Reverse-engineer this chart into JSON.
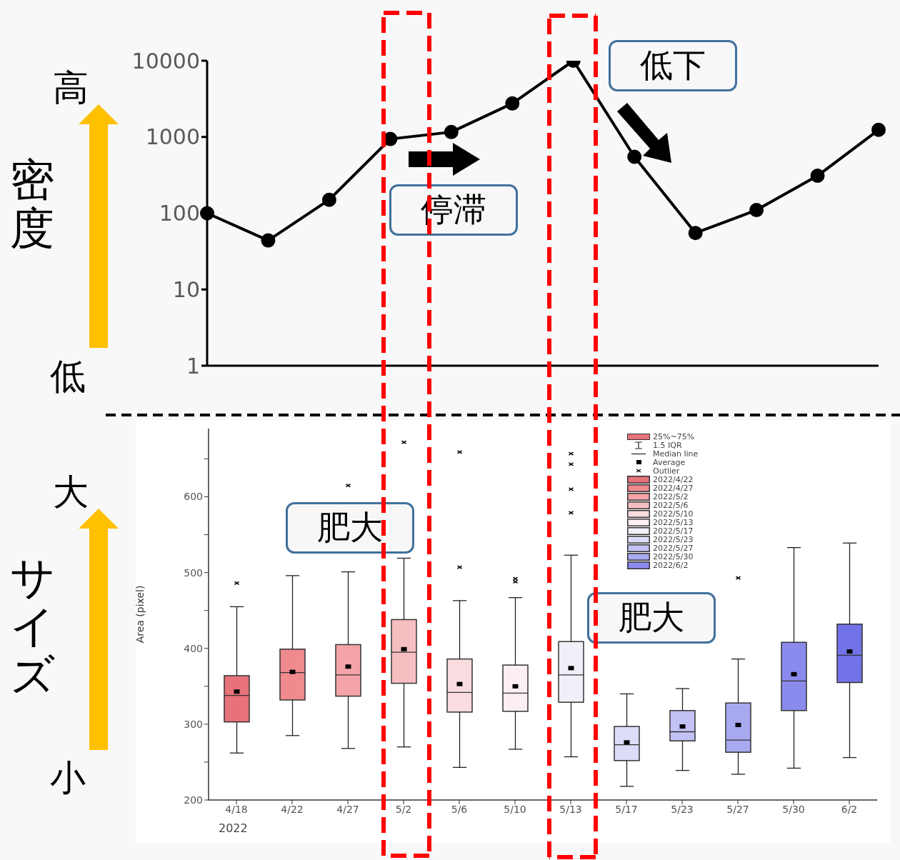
{
  "chart_data": [
    {
      "type": "line",
      "ylabel": "密度",
      "annotations": [
        "高",
        "低",
        "停滞",
        "低下"
      ],
      "categories": [
        null,
        null,
        null,
        null,
        null,
        null,
        null,
        null,
        null,
        null,
        null,
        null
      ],
      "series": [
        {
          "color": "#000000",
          "values": [
            100,
            44,
            150,
            940,
            1160,
            2750,
            10000,
            550,
            55,
            110,
            310,
            1240
          ]
        }
      ],
      "log": true,
      "ylim": [
        1,
        10000
      ],
      "yticks": [
        1,
        10,
        100,
        1000,
        10000
      ],
      "marker": "circle",
      "line_style": "solid"
    },
    {
      "type": "box",
      "ylabel": "Area (pixel)",
      "annotations": [
        "サイズ",
        "大",
        "小",
        "肥大",
        "肥大",
        "2022",
        "25%~75%",
        "1.5 IQR",
        "Median line",
        "Average",
        "Outlier",
        "2022/4/22",
        "2022/4/27",
        "2022/5/2",
        "2022/5/6",
        "2022/5/10",
        "2022/5/13",
        "2022/5/17",
        "2022/5/23",
        "2022/5/27",
        "2022/5/30",
        "2022/6/2"
      ],
      "categories": [
        "4/18",
        "4/22",
        "4/27",
        "5/2",
        "5/6",
        "5/10",
        "5/13",
        "5/17",
        "5/23",
        "5/27",
        "5/30",
        "6/2"
      ],
      "ylim": [
        200,
        690
      ],
      "yticks": [
        200,
        {
          "value": 250,
          "label": null
        },
        300,
        {
          "value": 350,
          "label": null
        },
        400,
        {
          "value": 450,
          "label": null
        },
        500,
        {
          "value": 550,
          "label": null
        },
        600,
        {
          "value": 650,
          "label": null
        }
      ],
      "series": [
        {
          "color": "#e8727a",
          "boxes": [
            {
              "low": 262,
              "q1": 303,
              "median": 338,
              "q3": 364,
              "high": 455,
              "mean": 343,
              "outliers": [
                486
              ]
            },
            null,
            null,
            null,
            null,
            null,
            null,
            null,
            null,
            null,
            null,
            null
          ]
        },
        {
          "color": "#ef8a8f",
          "boxes": [
            null,
            {
              "low": 285,
              "q1": 332,
              "median": 368,
              "q3": 399,
              "high": 496,
              "mean": 369
            },
            null,
            null,
            null,
            null,
            null,
            null,
            null,
            null,
            null,
            null
          ]
        },
        {
          "color": "#f4a4a8",
          "boxes": [
            null,
            null,
            {
              "low": 268,
              "q1": 337,
              "median": 365,
              "q3": 405,
              "high": 501,
              "mean": 376,
              "outliers": [
                615
              ]
            },
            null,
            null,
            null,
            null,
            null,
            null,
            null,
            null,
            null
          ]
        },
        {
          "color": "#f7bec2",
          "boxes": [
            null,
            null,
            null,
            {
              "low": 270,
              "q1": 354,
              "median": 395,
              "q3": 438,
              "high": 519,
              "mean": 399,
              "outliers": [
                672
              ]
            },
            null,
            null,
            null,
            null,
            null,
            null,
            null,
            null
          ]
        },
        {
          "color": "#f9dcdf",
          "boxes": [
            null,
            null,
            null,
            null,
            {
              "low": 243,
              "q1": 316,
              "median": 342,
              "q3": 386,
              "high": 463,
              "mean": 353,
              "outliers": [
                659,
                507
              ]
            },
            null,
            null,
            null,
            null,
            null,
            null,
            null
          ]
        },
        {
          "color": "#fbeff1",
          "boxes": [
            null,
            null,
            null,
            null,
            null,
            {
              "low": 267,
              "q1": 317,
              "median": 341,
              "q3": 378,
              "high": 467,
              "mean": 350,
              "outliers": [
                492,
                488
              ]
            },
            null,
            null,
            null,
            null,
            null,
            null
          ]
        },
        {
          "color": "#f0f0f9",
          "boxes": [
            null,
            null,
            null,
            null,
            null,
            null,
            {
              "low": 257,
              "q1": 329,
              "median": 365,
              "q3": 409,
              "high": 523,
              "mean": 374,
              "outliers": [
                657,
                643,
                610,
                579
              ]
            },
            null,
            null,
            null,
            null,
            null
          ]
        },
        {
          "color": "#dcdcf8",
          "boxes": [
            null,
            null,
            null,
            null,
            null,
            null,
            null,
            {
              "low": 218,
              "q1": 252,
              "median": 273,
              "q3": 297,
              "high": 340,
              "mean": 276
            },
            null,
            null,
            null,
            null
          ]
        },
        {
          "color": "#c2c2f5",
          "boxes": [
            null,
            null,
            null,
            null,
            null,
            null,
            null,
            null,
            {
              "low": 239,
              "q1": 278,
              "median": 290,
              "q3": 318,
              "high": 347,
              "mean": 297
            },
            null,
            null,
            null
          ]
        },
        {
          "color": "#a9a9f2",
          "boxes": [
            null,
            null,
            null,
            null,
            null,
            null,
            null,
            null,
            null,
            {
              "low": 234,
              "q1": 263,
              "median": 279,
              "q3": 328,
              "high": 386,
              "mean": 299,
              "outliers": [
                493
              ]
            },
            null,
            null
          ]
        },
        {
          "color": "#8b8bee",
          "boxes": [
            null,
            null,
            null,
            null,
            null,
            null,
            null,
            null,
            null,
            null,
            {
              "low": 242,
              "q1": 318,
              "median": 357,
              "q3": 408,
              "high": 533,
              "mean": 366
            },
            null
          ]
        },
        {
          "color": "#7272e8",
          "boxes": [
            null,
            null,
            null,
            null,
            null,
            null,
            null,
            null,
            null,
            null,
            null,
            {
              "low": 256,
              "q1": 355,
              "median": 391,
              "q3": 432,
              "high": 539,
              "mean": 396
            }
          ]
        }
      ]
    }
  ]
}
